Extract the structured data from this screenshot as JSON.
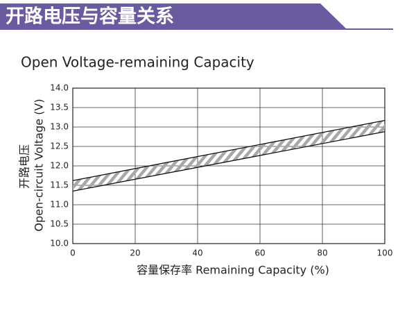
{
  "header": {
    "title": "开路电压与容量关系"
  },
  "chart_data": {
    "type": "band",
    "title": "Open Voltage-remaining Capacity",
    "xlabel": "容量保存率 Remaining Capacity (%)",
    "ylabel_zh": "开路电压",
    "ylabel": "Open-circuit Voltage (V)",
    "x": [
      0,
      100
    ],
    "upper": [
      11.62,
      13.17
    ],
    "lower": [
      11.35,
      12.88
    ],
    "color": "#999999",
    "xlim": [
      0,
      100
    ],
    "xticks": [
      0,
      20,
      40,
      60,
      80,
      100
    ],
    "ylim": [
      10,
      14
    ],
    "yticks": [
      {
        "value": 10,
        "label": "10.0"
      },
      10.5,
      {
        "value": 11,
        "label": "11.0"
      },
      11.5,
      {
        "value": 12,
        "label": "12.0"
      },
      12.5,
      {
        "value": 13,
        "label": "13.0"
      },
      13.5,
      {
        "value": 14,
        "label": "14.0"
      }
    ],
    "grid": true
  }
}
